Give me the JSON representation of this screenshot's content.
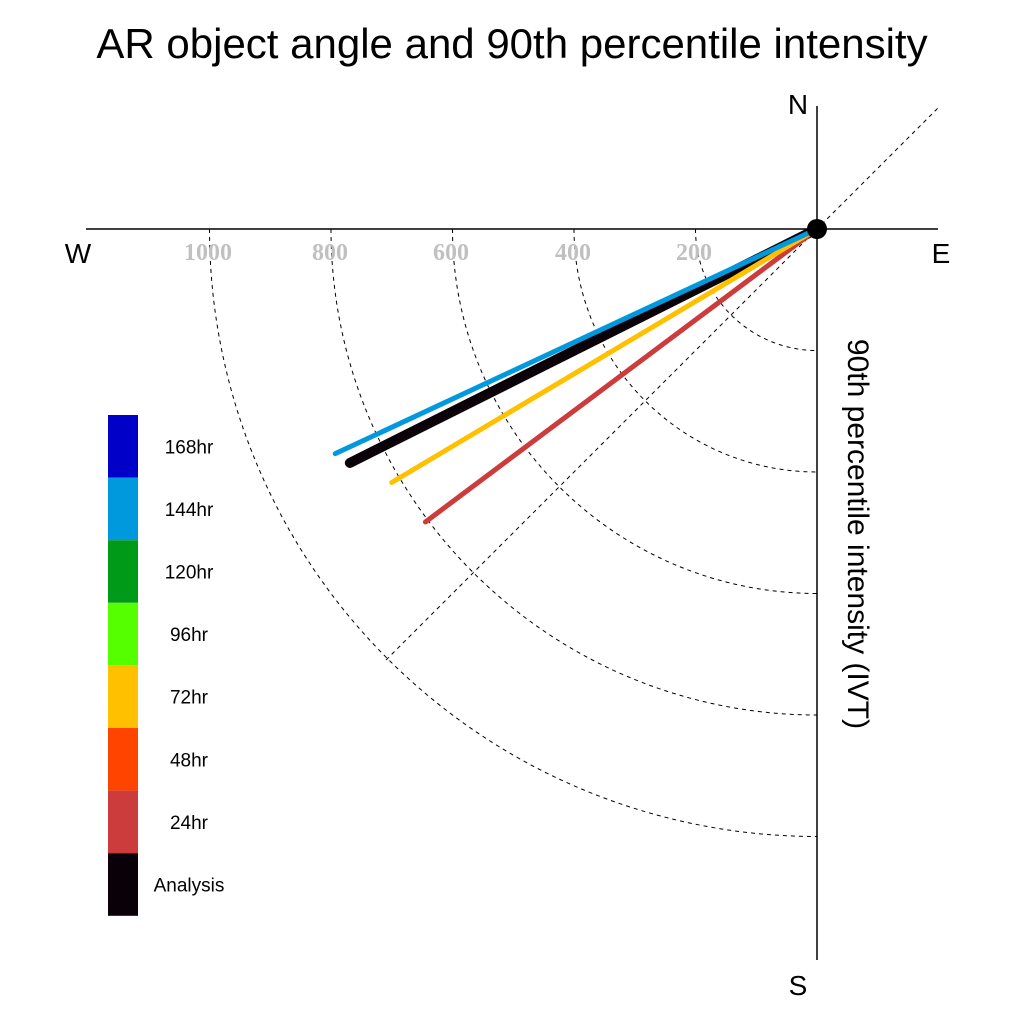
{
  "chart_data": {
    "type": "polar-vector",
    "title": "AR object angle and 90th percentile intensity",
    "ylabel": "90th percentile intensity (IVT)",
    "compass": {
      "north": "N",
      "south": "S",
      "east": "E",
      "west": "W"
    },
    "rings": [
      200,
      400,
      600,
      800,
      1000
    ],
    "ring_labels": [
      "1000",
      "800",
      "600",
      "400",
      "200"
    ],
    "rlim": [
      0,
      1200
    ],
    "series": [
      {
        "name": "Analysis",
        "color": "#0a0008",
        "angle_deg": 206.6,
        "intensity": 860,
        "width": 10
      },
      {
        "name": "24hr",
        "color": "#cc3c3c",
        "angle_deg": 216.8,
        "intensity": 805,
        "width": 5
      },
      {
        "name": "72hr",
        "color": "#ffc000",
        "angle_deg": 210.8,
        "intensity": 815,
        "width": 5
      },
      {
        "name": "144hr",
        "color": "#0099dd",
        "angle_deg": 205.0,
        "intensity": 875,
        "width": 5
      }
    ],
    "legend": [
      {
        "label": "168hr",
        "color": "#0000c8"
      },
      {
        "label": "144hr",
        "color": "#0099dd"
      },
      {
        "label": "120hr",
        "color": "#009a19"
      },
      {
        "label": "96hr",
        "color": "#55ff00"
      },
      {
        "label": "72hr",
        "color": "#ffc000"
      },
      {
        "label": "48hr",
        "color": "#ff4400"
      },
      {
        "label": "24hr",
        "color": "#cc3c3c"
      },
      {
        "label": "Analysis",
        "color": "#0a0008"
      }
    ]
  }
}
